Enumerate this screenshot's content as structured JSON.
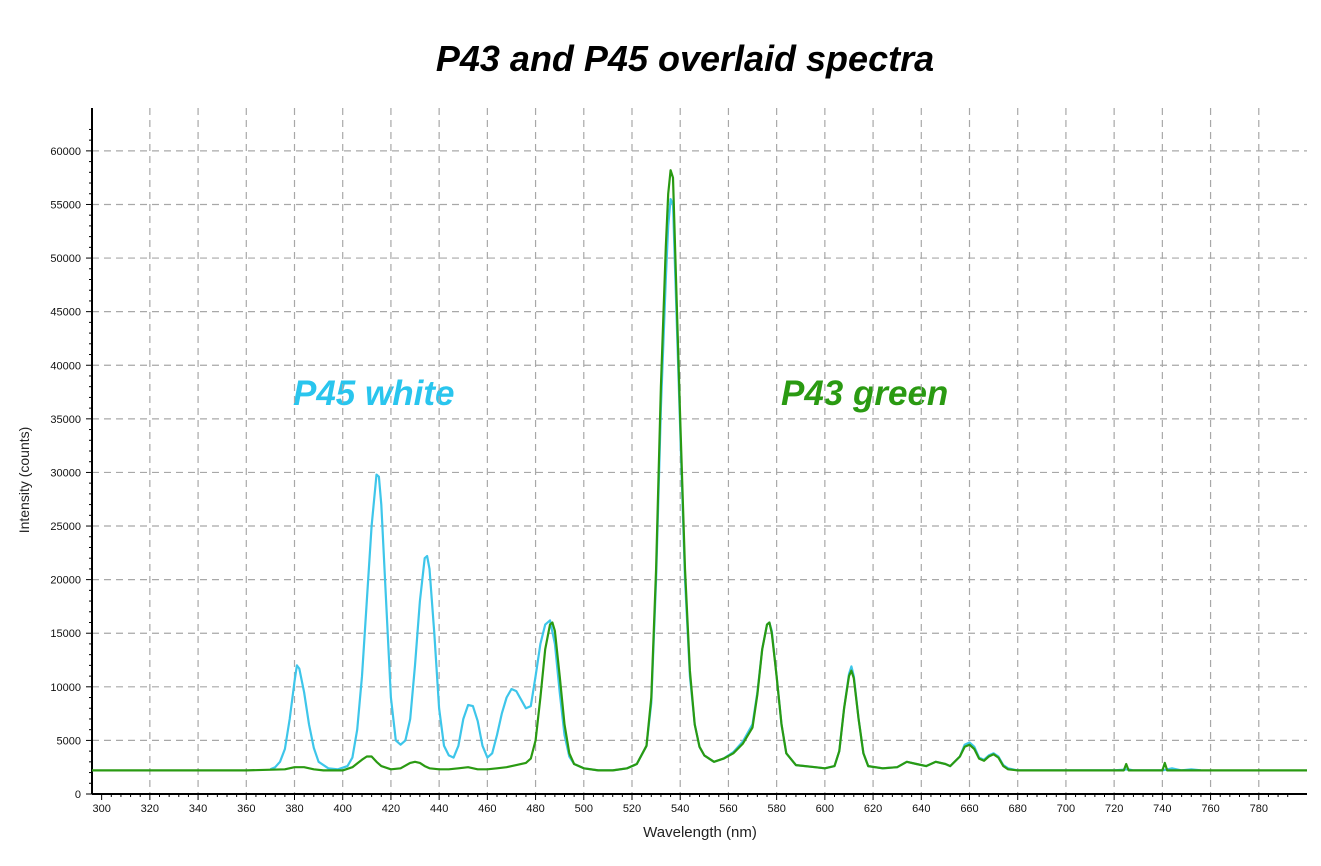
{
  "chart_data": {
    "type": "line",
    "title": "P43 and P45 overlaid spectra",
    "xlabel": "Wavelength (nm)",
    "ylabel": "Intensity (counts)",
    "xlim": [
      296,
      800
    ],
    "ylim": [
      0,
      64000
    ],
    "grid": true,
    "x_ticks": [
      300,
      320,
      340,
      360,
      380,
      400,
      420,
      440,
      460,
      480,
      500,
      520,
      540,
      560,
      580,
      600,
      620,
      640,
      660,
      680,
      700,
      720,
      740,
      760,
      780
    ],
    "x_tick_labels": [
      "300",
      "320",
      "340",
      "360",
      "380",
      "400",
      "420",
      "440",
      "460",
      "480",
      "500",
      "520",
      "540",
      "560",
      "580",
      "600",
      "620",
      "640",
      "660",
      "680",
      "700",
      "720",
      "740",
      "760",
      "780"
    ],
    "y_ticks": [
      0,
      5000,
      10000,
      15000,
      20000,
      25000,
      30000,
      35000,
      40000,
      45000,
      50000,
      55000,
      60000
    ],
    "y_tick_labels": [
      "0",
      "5000",
      "10000",
      "15000",
      "20000",
      "25000",
      "30000",
      "35000",
      "40000",
      "45000",
      "50000",
      "55000",
      "60000"
    ],
    "annotations": [
      {
        "text": "P45 white",
        "color": "#29c5ee"
      },
      {
        "text": "P43 green",
        "color": "#2a9a12"
      }
    ],
    "series": [
      {
        "color": "#3ec6ea",
        "points": [
          [
            370,
            2300
          ],
          [
            372,
            2500
          ],
          [
            374,
            3000
          ],
          [
            376,
            4200
          ],
          [
            378,
            7000
          ],
          [
            380,
            10500
          ],
          [
            381,
            12000
          ],
          [
            382,
            11700
          ],
          [
            384,
            9500
          ],
          [
            386,
            6500
          ],
          [
            388,
            4300
          ],
          [
            390,
            3000
          ],
          [
            394,
            2400
          ],
          [
            398,
            2300
          ],
          [
            402,
            2600
          ],
          [
            404,
            3400
          ],
          [
            406,
            6000
          ],
          [
            408,
            11000
          ],
          [
            410,
            18000
          ],
          [
            412,
            25000
          ],
          [
            414,
            29800
          ],
          [
            415,
            29600
          ],
          [
            416,
            27000
          ],
          [
            418,
            18000
          ],
          [
            420,
            9000
          ],
          [
            422,
            5000
          ],
          [
            424,
            4600
          ],
          [
            426,
            5000
          ],
          [
            428,
            7000
          ],
          [
            430,
            12000
          ],
          [
            432,
            18000
          ],
          [
            434,
            22000
          ],
          [
            435,
            22200
          ],
          [
            436,
            21000
          ],
          [
            438,
            15000
          ],
          [
            440,
            8000
          ],
          [
            442,
            4500
          ],
          [
            444,
            3600
          ],
          [
            446,
            3400
          ],
          [
            448,
            4500
          ],
          [
            450,
            7000
          ],
          [
            452,
            8300
          ],
          [
            454,
            8200
          ],
          [
            456,
            6800
          ],
          [
            458,
            4500
          ],
          [
            460,
            3400
          ],
          [
            462,
            3800
          ],
          [
            464,
            5500
          ],
          [
            466,
            7500
          ],
          [
            468,
            9000
          ],
          [
            470,
            9800
          ],
          [
            472,
            9600
          ],
          [
            474,
            8800
          ],
          [
            476,
            8000
          ],
          [
            478,
            8200
          ],
          [
            480,
            11000
          ],
          [
            482,
            14000
          ],
          [
            484,
            15800
          ],
          [
            486,
            16200
          ],
          [
            488,
            14000
          ],
          [
            490,
            9500
          ],
          [
            492,
            5500
          ],
          [
            494,
            3500
          ],
          [
            496,
            2800
          ],
          [
            500,
            2400
          ],
          [
            506,
            2200
          ],
          [
            512,
            2200
          ],
          [
            518,
            2400
          ],
          [
            522,
            2800
          ],
          [
            526,
            4500
          ],
          [
            528,
            8500
          ],
          [
            530,
            20000
          ],
          [
            532,
            36000
          ],
          [
            534,
            48000
          ],
          [
            535,
            53000
          ],
          [
            536,
            55500
          ],
          [
            537,
            55000
          ],
          [
            538,
            48000
          ],
          [
            540,
            34000
          ],
          [
            542,
            20000
          ],
          [
            544,
            11000
          ],
          [
            546,
            6500
          ],
          [
            548,
            4400
          ],
          [
            550,
            3600
          ],
          [
            554,
            3000
          ],
          [
            558,
            3300
          ],
          [
            562,
            3900
          ],
          [
            566,
            4900
          ],
          [
            570,
            6500
          ],
          [
            572,
            9500
          ],
          [
            574,
            13500
          ],
          [
            576,
            15800
          ],
          [
            577,
            16000
          ],
          [
            578,
            15200
          ],
          [
            580,
            11000
          ],
          [
            582,
            6500
          ],
          [
            584,
            3800
          ],
          [
            588,
            2700
          ],
          [
            596,
            2500
          ],
          [
            600,
            2400
          ],
          [
            604,
            2600
          ],
          [
            606,
            4000
          ],
          [
            608,
            8000
          ],
          [
            610,
            11200
          ],
          [
            611,
            11900
          ],
          [
            612,
            11000
          ],
          [
            614,
            7000
          ],
          [
            616,
            3800
          ],
          [
            618,
            2600
          ],
          [
            624,
            2400
          ],
          [
            630,
            2500
          ],
          [
            634,
            3000
          ],
          [
            638,
            2800
          ],
          [
            642,
            2600
          ],
          [
            646,
            3000
          ],
          [
            650,
            2800
          ],
          [
            652,
            2600
          ],
          [
            656,
            3500
          ],
          [
            658,
            4600
          ],
          [
            660,
            4800
          ],
          [
            662,
            4400
          ],
          [
            664,
            3400
          ],
          [
            666,
            3200
          ],
          [
            668,
            3600
          ],
          [
            670,
            3800
          ],
          [
            672,
            3500
          ],
          [
            674,
            2700
          ],
          [
            676,
            2400
          ],
          [
            680,
            2200
          ],
          [
            700,
            2200
          ],
          [
            720,
            2200
          ],
          [
            726,
            2300
          ],
          [
            728,
            2200
          ],
          [
            740,
            2200
          ],
          [
            744,
            2400
          ],
          [
            748,
            2200
          ],
          [
            752,
            2300
          ],
          [
            756,
            2200
          ]
        ]
      },
      {
        "color": "#2a9a12",
        "points": [
          [
            296,
            2200
          ],
          [
            330,
            2200
          ],
          [
            360,
            2200
          ],
          [
            376,
            2300
          ],
          [
            380,
            2500
          ],
          [
            384,
            2500
          ],
          [
            388,
            2300
          ],
          [
            392,
            2200
          ],
          [
            400,
            2200
          ],
          [
            404,
            2500
          ],
          [
            408,
            3200
          ],
          [
            410,
            3500
          ],
          [
            412,
            3500
          ],
          [
            414,
            3000
          ],
          [
            416,
            2600
          ],
          [
            420,
            2300
          ],
          [
            424,
            2400
          ],
          [
            428,
            2900
          ],
          [
            430,
            3000
          ],
          [
            432,
            2900
          ],
          [
            434,
            2600
          ],
          [
            436,
            2400
          ],
          [
            440,
            2300
          ],
          [
            444,
            2300
          ],
          [
            448,
            2400
          ],
          [
            452,
            2500
          ],
          [
            456,
            2300
          ],
          [
            460,
            2300
          ],
          [
            464,
            2400
          ],
          [
            468,
            2500
          ],
          [
            472,
            2700
          ],
          [
            476,
            2900
          ],
          [
            478,
            3300
          ],
          [
            480,
            5000
          ],
          [
            482,
            9000
          ],
          [
            484,
            13500
          ],
          [
            486,
            15800
          ],
          [
            487,
            16000
          ],
          [
            488,
            15200
          ],
          [
            490,
            11000
          ],
          [
            492,
            6500
          ],
          [
            494,
            3800
          ],
          [
            496,
            2800
          ],
          [
            500,
            2400
          ],
          [
            506,
            2200
          ],
          [
            512,
            2200
          ],
          [
            518,
            2400
          ],
          [
            522,
            2800
          ],
          [
            526,
            4500
          ],
          [
            528,
            9000
          ],
          [
            530,
            21000
          ],
          [
            532,
            38000
          ],
          [
            534,
            51000
          ],
          [
            535,
            56000
          ],
          [
            536,
            58200
          ],
          [
            537,
            57500
          ],
          [
            538,
            50000
          ],
          [
            540,
            35000
          ],
          [
            542,
            21000
          ],
          [
            544,
            11500
          ],
          [
            546,
            6500
          ],
          [
            548,
            4400
          ],
          [
            550,
            3600
          ],
          [
            554,
            3000
          ],
          [
            558,
            3300
          ],
          [
            562,
            3800
          ],
          [
            566,
            4700
          ],
          [
            570,
            6200
          ],
          [
            572,
            9300
          ],
          [
            574,
            13500
          ],
          [
            576,
            15800
          ],
          [
            577,
            16000
          ],
          [
            578,
            15000
          ],
          [
            580,
            11000
          ],
          [
            582,
            6500
          ],
          [
            584,
            3800
          ],
          [
            588,
            2700
          ],
          [
            596,
            2500
          ],
          [
            600,
            2400
          ],
          [
            604,
            2600
          ],
          [
            606,
            4000
          ],
          [
            608,
            8000
          ],
          [
            610,
            11000
          ],
          [
            611,
            11500
          ],
          [
            612,
            10800
          ],
          [
            614,
            7000
          ],
          [
            616,
            3800
          ],
          [
            618,
            2600
          ],
          [
            624,
            2400
          ],
          [
            630,
            2500
          ],
          [
            634,
            3000
          ],
          [
            638,
            2800
          ],
          [
            642,
            2600
          ],
          [
            646,
            3000
          ],
          [
            650,
            2800
          ],
          [
            652,
            2600
          ],
          [
            656,
            3500
          ],
          [
            658,
            4400
          ],
          [
            660,
            4600
          ],
          [
            662,
            4200
          ],
          [
            664,
            3300
          ],
          [
            666,
            3100
          ],
          [
            668,
            3500
          ],
          [
            670,
            3700
          ],
          [
            672,
            3400
          ],
          [
            674,
            2600
          ],
          [
            676,
            2300
          ],
          [
            680,
            2200
          ],
          [
            720,
            2200
          ],
          [
            724,
            2200
          ],
          [
            725,
            2800
          ],
          [
            726,
            2200
          ],
          [
            740,
            2200
          ],
          [
            741,
            2900
          ],
          [
            742,
            2200
          ],
          [
            760,
            2200
          ],
          [
            800,
            2200
          ]
        ]
      }
    ]
  }
}
